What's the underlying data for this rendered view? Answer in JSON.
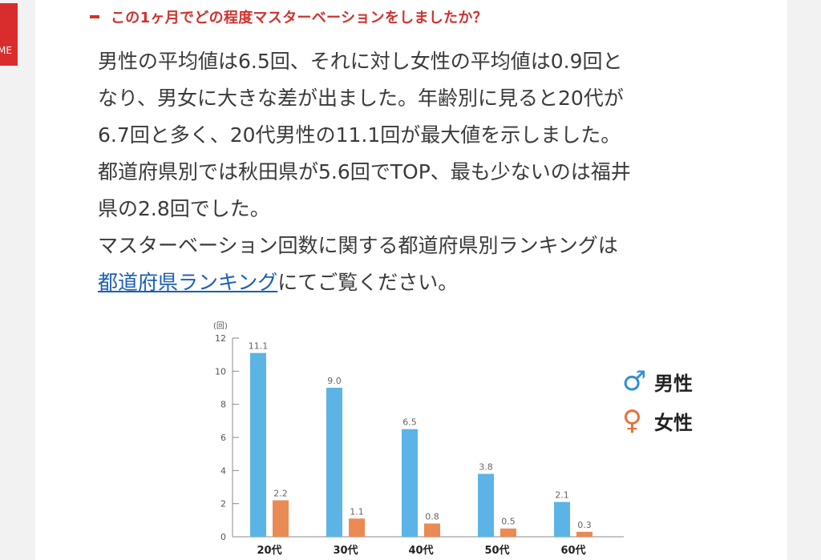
{
  "sidebar": {
    "home_label": "ME"
  },
  "heading": "この1ヶ月でどの程度マスターベーションをしましたか？",
  "paragraph": {
    "line1": "男性の平均値は6.5回、それに対し女性の平均値は0.9回と",
    "line2": "なり、男女に大きな差が出ました。年齢別に見ると20代が",
    "line3": "6.7回と多く、20代男性の11.1回が最大値を示しました。",
    "line4": "都道府県別では秋田県が5.6回でTOP、最も少ないのは福井",
    "line5": "県の2.8回でした。",
    "line6": "マスターベーション回数に関する都道府県別ランキングは",
    "link": "都道府県ランキング",
    "line7_rest": "にてご覧ください。"
  },
  "legend": {
    "male_symbol": "♂",
    "male_label": "男性",
    "female_symbol": "♀",
    "female_label": "女性"
  },
  "chart_data": {
    "type": "bar",
    "ylabel": "(回)",
    "ylim": [
      0,
      12
    ],
    "yticks": [
      0,
      2,
      4,
      6,
      8,
      10,
      12
    ],
    "categories": [
      "20代",
      "30代",
      "40代",
      "50代",
      "60代"
    ],
    "series": [
      {
        "name": "男性",
        "color": "#5bb4e5",
        "values": [
          11.1,
          9.0,
          6.5,
          3.8,
          2.1
        ],
        "labels": [
          "11.1",
          "9.0",
          "6.5",
          "3.8",
          "2.1"
        ]
      },
      {
        "name": "女性",
        "color": "#ea8a55",
        "values": [
          2.2,
          1.1,
          0.8,
          0.5,
          0.3
        ],
        "labels": [
          "2.2",
          "1.1",
          "0.8",
          "0.5",
          "0.3"
        ]
      }
    ],
    "legend_position": "right"
  }
}
